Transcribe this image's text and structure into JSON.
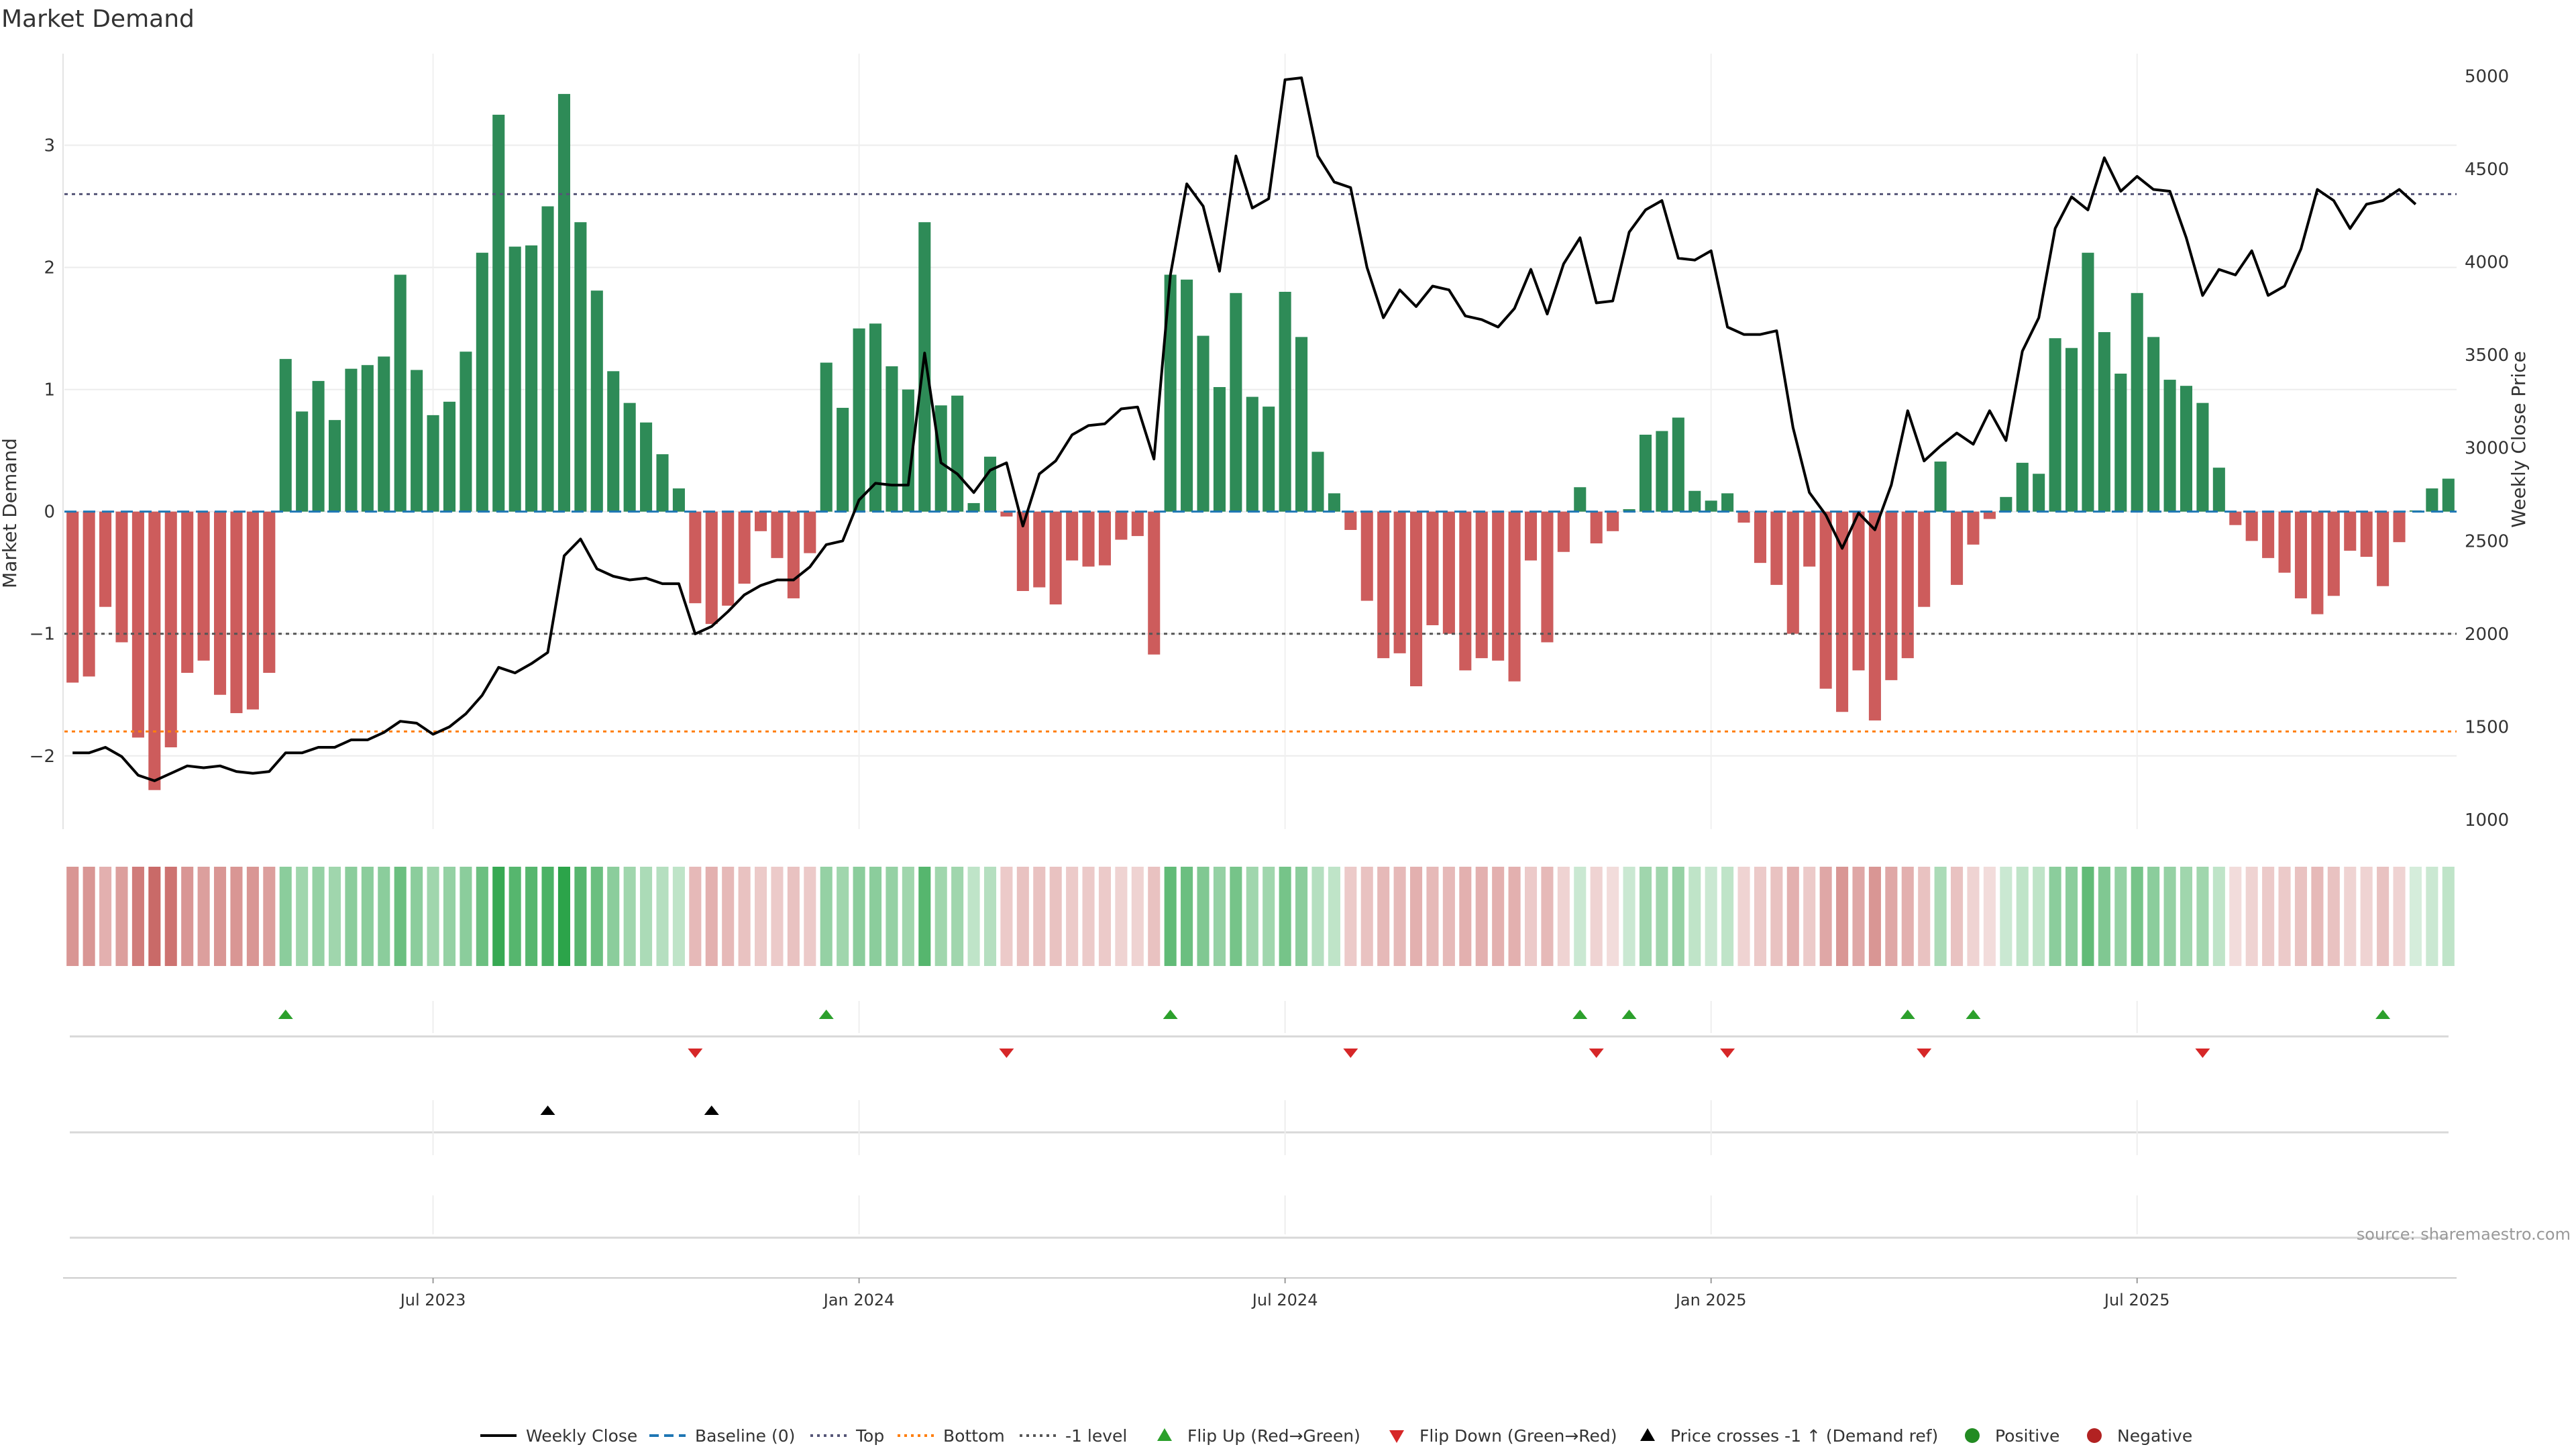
{
  "title": "Market Demand",
  "source": "source: sharemaestro.com",
  "chart_data": {
    "type": "bar",
    "title": "Market Demand",
    "ylabel": "Market Demand",
    "y2label": "Weekly Close Price",
    "ylim": [
      -2.6,
      3.75
    ],
    "y2lim": [
      950,
      5120
    ],
    "yticks": [
      "3",
      "2",
      "1",
      "0",
      "−1",
      "−2"
    ],
    "y2ticks": [
      "5000",
      "4500",
      "4000",
      "3500",
      "3000",
      "2500",
      "2000",
      "1500",
      "1000"
    ],
    "xticks": [
      "Jul 2023",
      "Jan 2024",
      "Jul 2024",
      "Jan 2025",
      "Jul 2025"
    ],
    "xtick_index": [
      22,
      48,
      74,
      100,
      126
    ],
    "hlines": {
      "top": 2.6,
      "bottom": -1.8,
      "minus_one": -1
    },
    "colors": {
      "positive": "#2e8b57",
      "negative": "#cd5c5c",
      "price": "#000000",
      "baseline": "#1f77b4",
      "top": "#555577",
      "bottom": "#ff7f0e",
      "flip_up": "#2ca02c",
      "flip_down": "#d62728",
      "cross": "#000000"
    },
    "series": [
      {
        "name": "Market Demand",
        "values": [
          -1.4,
          -1.35,
          -0.78,
          -1.07,
          -1.85,
          -2.28,
          -1.93,
          -1.32,
          -1.22,
          -1.5,
          -1.65,
          -1.62,
          -1.32,
          1.25,
          0.82,
          1.07,
          0.75,
          1.17,
          1.2,
          1.27,
          1.94,
          1.16,
          0.79,
          0.9,
          1.31,
          2.12,
          3.25,
          2.17,
          2.18,
          2.5,
          3.42,
          2.37,
          1.81,
          1.15,
          0.89,
          0.73,
          0.47,
          0.19,
          -0.75,
          -0.92,
          -0.77,
          -0.59,
          -0.16,
          -0.38,
          -0.71,
          -0.34,
          1.22,
          0.85,
          1.5,
          1.54,
          1.19,
          1.0,
          2.37,
          0.87,
          0.95,
          0.07,
          0.45,
          -0.04,
          -0.65,
          -0.62,
          -0.76,
          -0.4,
          -0.45,
          -0.44,
          -0.23,
          -0.2,
          -1.17,
          1.94,
          1.9,
          1.44,
          1.02,
          1.79,
          0.94,
          0.86,
          1.8,
          1.43,
          0.49,
          0.15,
          -0.15,
          -0.73,
          -1.2,
          -1.16,
          -1.43,
          -0.93,
          -1.0,
          -1.3,
          -1.2,
          -1.22,
          -1.39,
          -0.4,
          -1.07,
          -0.33,
          0.2,
          -0.26,
          -0.16,
          0.02,
          0.63,
          0.66,
          0.77,
          0.17,
          0.09,
          0.15,
          -0.09,
          -0.42,
          -0.6,
          -1.0,
          -0.45,
          -1.45,
          -1.64,
          -1.3,
          -1.71,
          -1.38,
          -1.2,
          -0.78,
          0.41,
          -0.6,
          -0.27,
          -0.06,
          0.12,
          0.4,
          0.31,
          1.42,
          1.34,
          2.12,
          1.47,
          1.13,
          1.79,
          1.43,
          1.08,
          1.03,
          0.89,
          0.36,
          -0.11,
          -0.24,
          -0.38,
          -0.5,
          -0.71,
          -0.84,
          -0.69,
          -0.32,
          -0.37,
          -0.61,
          -0.25,
          0.01,
          0.19,
          0.27
        ]
      },
      {
        "name": "Weekly Close",
        "values": [
          1360,
          1360,
          1390,
          1340,
          1240,
          1210,
          1250,
          1290,
          1280,
          1290,
          1260,
          1250,
          1260,
          1360,
          1360,
          1390,
          1390,
          1430,
          1430,
          1470,
          1530,
          1520,
          1460,
          1500,
          1570,
          1670,
          1820,
          1790,
          1840,
          1900,
          2420,
          2510,
          2350,
          2310,
          2290,
          2300,
          2270,
          2270,
          2000,
          2040,
          2120,
          2210,
          2260,
          2290,
          2290,
          2360,
          2480,
          2500,
          2720,
          2810,
          2800,
          2800,
          3510,
          2920,
          2860,
          2760,
          2880,
          2920,
          2580,
          2860,
          2930,
          3070,
          3120,
          3130,
          3210,
          3220,
          2940,
          3930,
          4420,
          4300,
          3950,
          4570,
          4290,
          4340,
          4980,
          4990,
          4570,
          4430,
          4400,
          3970,
          3700,
          3850,
          3760,
          3870,
          3850,
          3710,
          3690,
          3650,
          3750,
          3960,
          3720,
          3990,
          4130,
          3780,
          3790,
          4160,
          4280,
          4330,
          4020,
          4010,
          4060,
          3650,
          3610,
          3610,
          3630,
          3110,
          2760,
          2640,
          2460,
          2650,
          2560,
          2800,
          3200,
          2930,
          3010,
          3080,
          3020,
          3200,
          3040,
          3520,
          3700,
          4180,
          4350,
          4280,
          4560,
          4380,
          4460,
          4390,
          4380,
          4130,
          3820,
          3960,
          3930,
          4060,
          3820,
          3870,
          4070,
          4390,
          4330,
          4180,
          4310,
          4330,
          4390,
          4310
        ]
      }
    ],
    "flip_up": [
      13,
      46,
      67,
      92,
      95,
      112,
      116,
      141
    ],
    "flip_down": [
      38,
      57,
      78,
      93,
      101,
      113,
      130
    ],
    "price_cross": [
      29,
      39
    ],
    "heat_weights": [
      0.6,
      0.6,
      0.45,
      0.55,
      0.75,
      0.85,
      0.8,
      0.6,
      0.55,
      0.6,
      0.6,
      0.6,
      0.55,
      0.55,
      0.45,
      0.5,
      0.45,
      0.55,
      0.55,
      0.55,
      0.7,
      0.55,
      0.45,
      0.5,
      0.55,
      0.7,
      0.95,
      0.8,
      0.8,
      0.85,
      1.0,
      0.8,
      0.7,
      0.55,
      0.45,
      0.4,
      0.35,
      0.3,
      0.4,
      0.45,
      0.4,
      0.35,
      0.3,
      0.3,
      0.35,
      0.3,
      0.5,
      0.45,
      0.55,
      0.55,
      0.5,
      0.45,
      0.8,
      0.45,
      0.45,
      0.3,
      0.35,
      0.3,
      0.35,
      0.35,
      0.35,
      0.3,
      0.3,
      0.3,
      0.25,
      0.25,
      0.35,
      0.75,
      0.7,
      0.6,
      0.5,
      0.65,
      0.45,
      0.45,
      0.65,
      0.55,
      0.35,
      0.3,
      0.3,
      0.35,
      0.4,
      0.4,
      0.45,
      0.4,
      0.4,
      0.45,
      0.45,
      0.45,
      0.45,
      0.3,
      0.4,
      0.25,
      0.25,
      0.25,
      0.2,
      0.25,
      0.45,
      0.45,
      0.5,
      0.3,
      0.25,
      0.3,
      0.25,
      0.3,
      0.35,
      0.45,
      0.3,
      0.5,
      0.6,
      0.5,
      0.6,
      0.5,
      0.45,
      0.35,
      0.4,
      0.35,
      0.25,
      0.2,
      0.25,
      0.3,
      0.3,
      0.55,
      0.55,
      0.75,
      0.6,
      0.5,
      0.65,
      0.55,
      0.5,
      0.45,
      0.45,
      0.3,
      0.2,
      0.25,
      0.3,
      0.3,
      0.35,
      0.4,
      0.35,
      0.25,
      0.25,
      0.35,
      0.25,
      0.2,
      0.25,
      0.3
    ]
  },
  "legend": [
    {
      "label": "Weekly Close",
      "symbol": "line-solid",
      "color": "#000000"
    },
    {
      "label": "Baseline (0)",
      "symbol": "line-dashed",
      "color": "#1f77b4"
    },
    {
      "label": "Top",
      "symbol": "line-dotted",
      "color": "#555577"
    },
    {
      "label": "Bottom",
      "symbol": "line-dotted",
      "color": "#ff7f0e"
    },
    {
      "label": "-1 level",
      "symbol": "line-dotted",
      "color": "#555555"
    },
    {
      "label": "Flip Up (Red→Green)",
      "symbol": "triangle-up",
      "color": "#2ca02c"
    },
    {
      "label": "Flip Down (Green→Red)",
      "symbol": "triangle-down",
      "color": "#d62728"
    },
    {
      "label": "Price crosses -1 ↑ (Demand ref)",
      "symbol": "triangle-up",
      "color": "#000000"
    },
    {
      "label": "Positive",
      "symbol": "circle",
      "color": "#228b22"
    },
    {
      "label": "Negative",
      "symbol": "circle",
      "color": "#b22222"
    }
  ]
}
